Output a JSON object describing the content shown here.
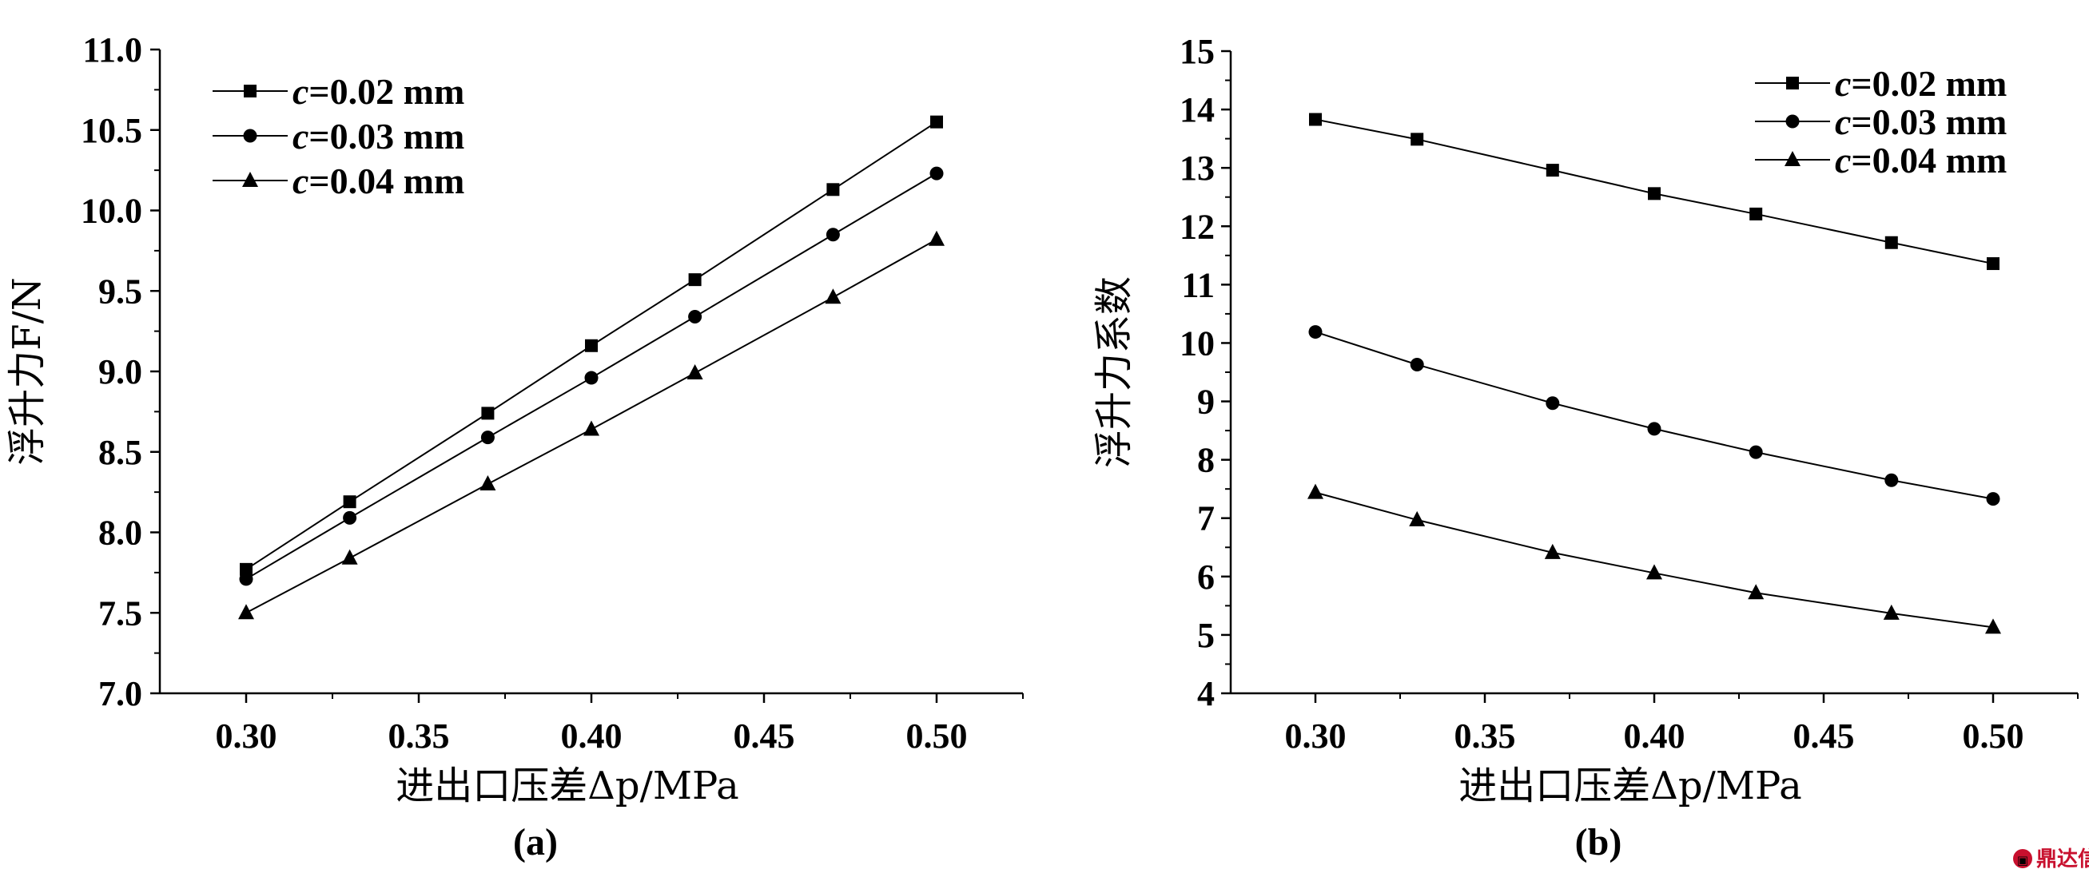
{
  "chart_data": [
    {
      "type": "line",
      "panel_label": "(a)",
      "xlabel": "进出口压差Δp/MPa",
      "ylabel": "浮升力F/N",
      "x": [
        0.3,
        0.33,
        0.37,
        0.4,
        0.43,
        0.47,
        0.5
      ],
      "xlim": [
        0.275,
        0.525
      ],
      "ylim": [
        7.0,
        11.0
      ],
      "xticks": [
        "0.30",
        "0.35",
        "0.40",
        "0.45",
        "0.50"
      ],
      "yticks": [
        "7.0",
        "7.5",
        "8.0",
        "8.5",
        "9.0",
        "9.5",
        "10.0",
        "10.5",
        "11.0"
      ],
      "legend_position": "top-left",
      "grid": false,
      "series": [
        {
          "name": "c=0.02 mm",
          "marker": "square",
          "values": [
            7.77,
            8.19,
            8.74,
            9.16,
            9.57,
            10.13,
            10.55
          ]
        },
        {
          "name": "c=0.03 mm",
          "marker": "circle",
          "values": [
            7.71,
            8.09,
            8.59,
            8.96,
            9.34,
            9.85,
            10.23
          ]
        },
        {
          "name": "c=0.04 mm",
          "marker": "triangle",
          "values": [
            7.5,
            7.84,
            8.3,
            8.64,
            8.99,
            9.46,
            9.82
          ]
        }
      ]
    },
    {
      "type": "line",
      "panel_label": "(b)",
      "xlabel": "进出口压差Δp/MPa",
      "ylabel": "浮升力系数",
      "x": [
        0.3,
        0.33,
        0.37,
        0.4,
        0.43,
        0.47,
        0.5
      ],
      "xlim": [
        0.275,
        0.525
      ],
      "ylim": [
        4,
        15
      ],
      "xticks": [
        "0.30",
        "0.35",
        "0.40",
        "0.45",
        "0.50"
      ],
      "yticks": [
        "4",
        "5",
        "6",
        "7",
        "8",
        "9",
        "10",
        "11",
        "12",
        "13",
        "14",
        "15"
      ],
      "legend_position": "top-right",
      "grid": false,
      "series": [
        {
          "name": "c=0.02 mm",
          "marker": "square",
          "values": [
            13.83,
            13.49,
            12.96,
            12.56,
            12.21,
            11.72,
            11.36
          ]
        },
        {
          "name": "c=0.03 mm",
          "marker": "circle",
          "values": [
            10.19,
            9.63,
            8.97,
            8.53,
            8.13,
            7.65,
            7.33
          ]
        },
        {
          "name": "c=0.04 mm",
          "marker": "triangle",
          "values": [
            7.44,
            6.97,
            6.41,
            6.06,
            5.72,
            5.37,
            5.13
          ]
        }
      ]
    }
  ],
  "watermark": "鼎达信"
}
